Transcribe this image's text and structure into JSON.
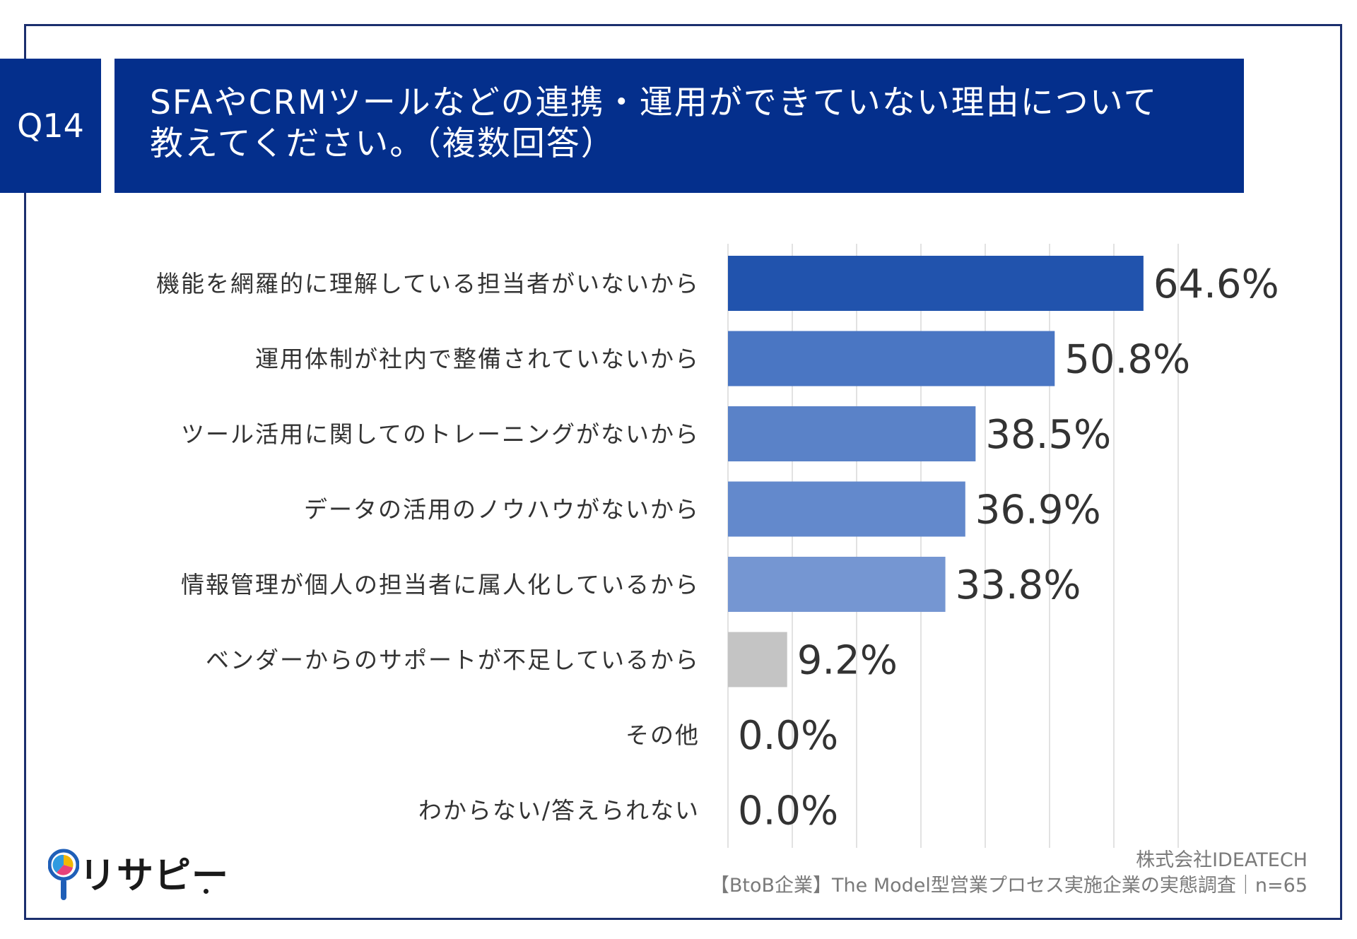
{
  "question_id": "Q14",
  "title_lines": [
    "SFAやCRMツールなどの連携・運用ができていない理由について",
    "教えてください。（複数回答）"
  ],
  "logo_text": "リサピー",
  "source_company": "株式会社IDEATECH",
  "source_survey": "【BtoB企業】The Model型営業プロセス実施企業の実態調査｜n=65",
  "colors": {
    "header_bg": "#042f8c",
    "bar_shades": [
      "#2153ad",
      "#4a76c3",
      "#5a82c8",
      "#6389cc",
      "#7596d2"
    ],
    "bar_gray": "#c4c4c4",
    "label_text": "#333333",
    "grid": "#d9d9d9"
  },
  "chart_data": {
    "type": "bar",
    "orientation": "horizontal",
    "categories": [
      "機能を網羅的に理解している担当者がいないから",
      "運用体制が社内で整備されていないから",
      "ツール活用に関してのトレーニングがないから",
      "データの活用のノウハウがないから",
      "情報管理が個人の担当者に属人化しているから",
      "ベンダーからのサポートが不足しているから",
      "その他",
      "わからない/答えられない"
    ],
    "values": [
      64.6,
      50.8,
      38.5,
      36.9,
      33.8,
      9.2,
      0.0,
      0.0
    ],
    "value_labels": [
      "64.6%",
      "50.8%",
      "38.5%",
      "36.9%",
      "33.8%",
      "9.2%",
      "0.0%",
      "0.0%"
    ],
    "unit": "%",
    "xlim": [
      0,
      70
    ],
    "grid": true,
    "legend": "none"
  }
}
